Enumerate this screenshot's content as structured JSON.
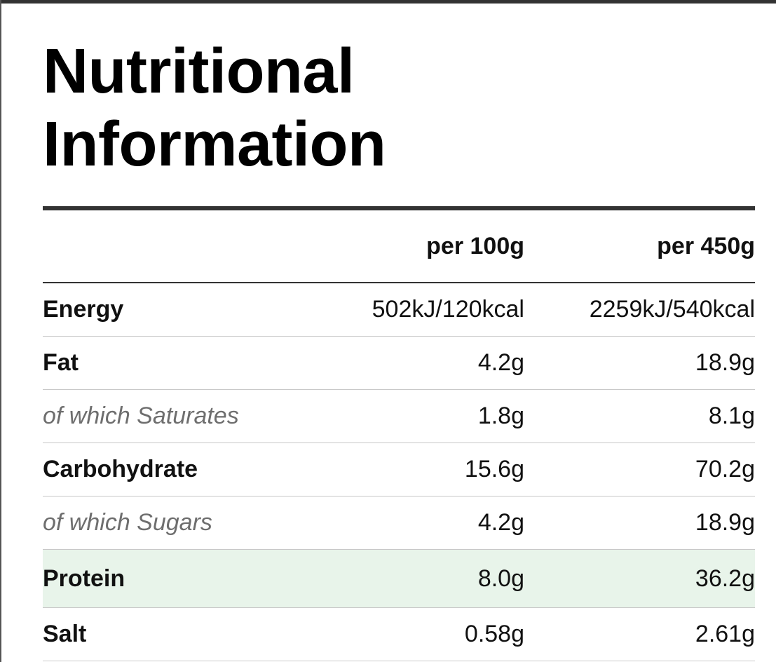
{
  "title_lines": [
    "Nutritional",
    "Information"
  ],
  "columns": {
    "per_100g": "per 100g",
    "per_450g": "per 450g"
  },
  "colors": {
    "highlight_row": "#e8f4ea",
    "sub_row_text": "#6e6e6e",
    "rule": "#333333"
  },
  "rows": [
    {
      "label": "Energy",
      "per_100g": "502kJ/120kcal",
      "per_450g": "2259kJ/540kcal",
      "style": "main"
    },
    {
      "label": "Fat",
      "per_100g": "4.2g",
      "per_450g": "18.9g",
      "style": "main"
    },
    {
      "label": "of which Saturates",
      "per_100g": "1.8g",
      "per_450g": "8.1g",
      "style": "sub"
    },
    {
      "label": "Carbohydrate",
      "per_100g": "15.6g",
      "per_450g": "70.2g",
      "style": "main"
    },
    {
      "label": "of which Sugars",
      "per_100g": "4.2g",
      "per_450g": "18.9g",
      "style": "sub"
    },
    {
      "label": "Protein",
      "per_100g": "8.0g",
      "per_450g": "36.2g",
      "style": "highlight"
    },
    {
      "label": "Salt",
      "per_100g": "0.58g",
      "per_450g": "2.61g",
      "style": "main"
    }
  ]
}
